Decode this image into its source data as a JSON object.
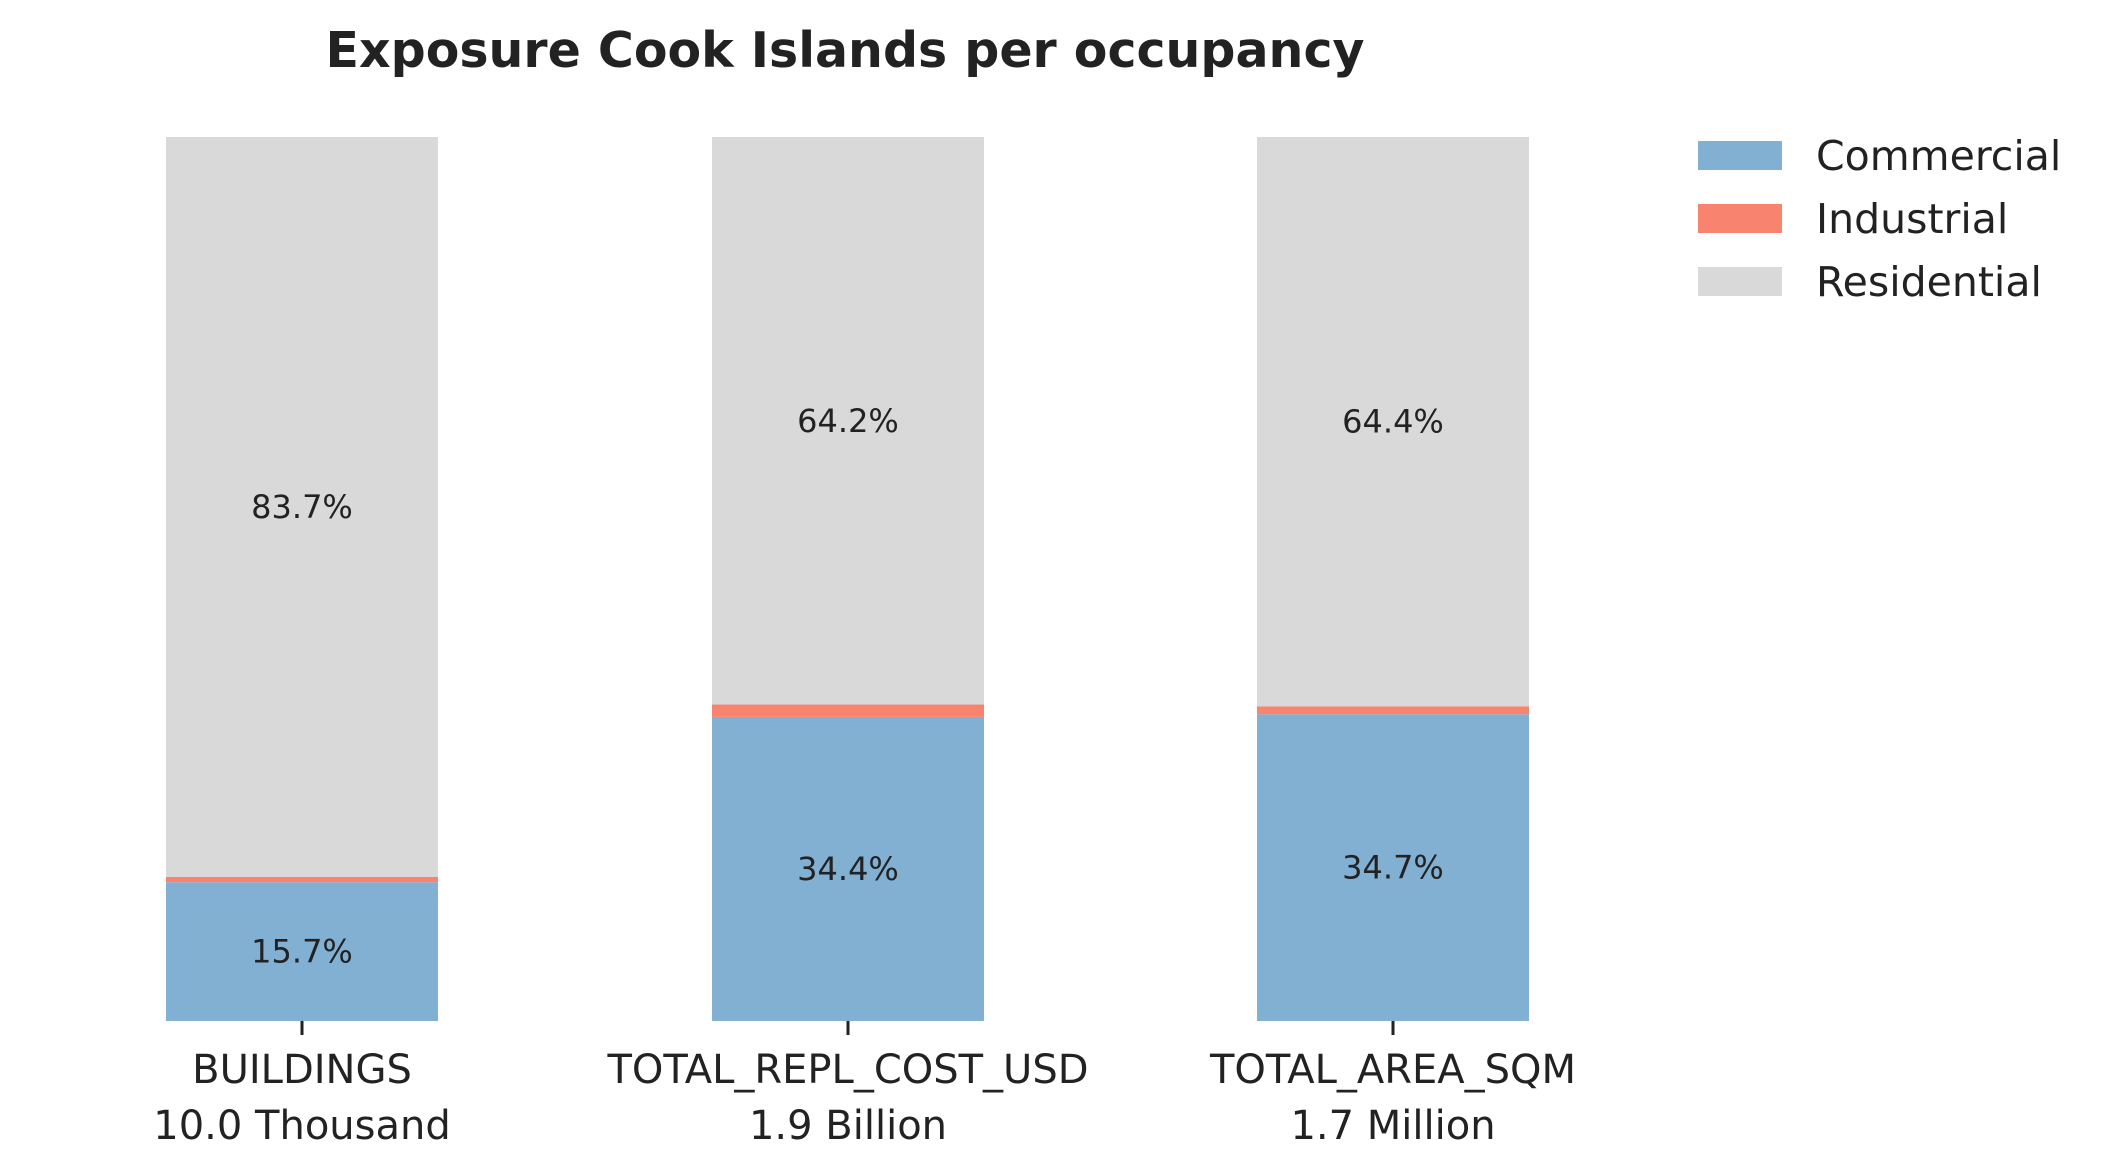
{
  "chart_data": {
    "type": "bar",
    "stacked": true,
    "percent": true,
    "title": "Exposure Cook Islands per occupancy",
    "xlabel": "",
    "ylabel": "",
    "ylim": [
      0,
      100
    ],
    "grid": false,
    "legend_position": "top-right",
    "categories": [
      "BUILDINGS",
      "TOTAL_REPL_COST_USD",
      "TOTAL_AREA_SQM"
    ],
    "category_totals": [
      "10.0 Thousand",
      "1.9 Billion",
      "1.7 Million"
    ],
    "series": [
      {
        "name": "Commercial",
        "color": "#82b0d3",
        "values": [
          15.7,
          34.4,
          34.7
        ],
        "labels": [
          "15.7%",
          "34.4%",
          "34.7%"
        ]
      },
      {
        "name": "Industrial",
        "color": "#f8836f",
        "values": [
          0.6,
          1.4,
          0.9
        ],
        "labels": [
          "",
          "",
          ""
        ]
      },
      {
        "name": "Residential",
        "color": "#d9d9d9",
        "values": [
          83.7,
          64.2,
          64.4
        ],
        "labels": [
          "83.7%",
          "64.2%",
          "64.4%"
        ]
      }
    ]
  }
}
